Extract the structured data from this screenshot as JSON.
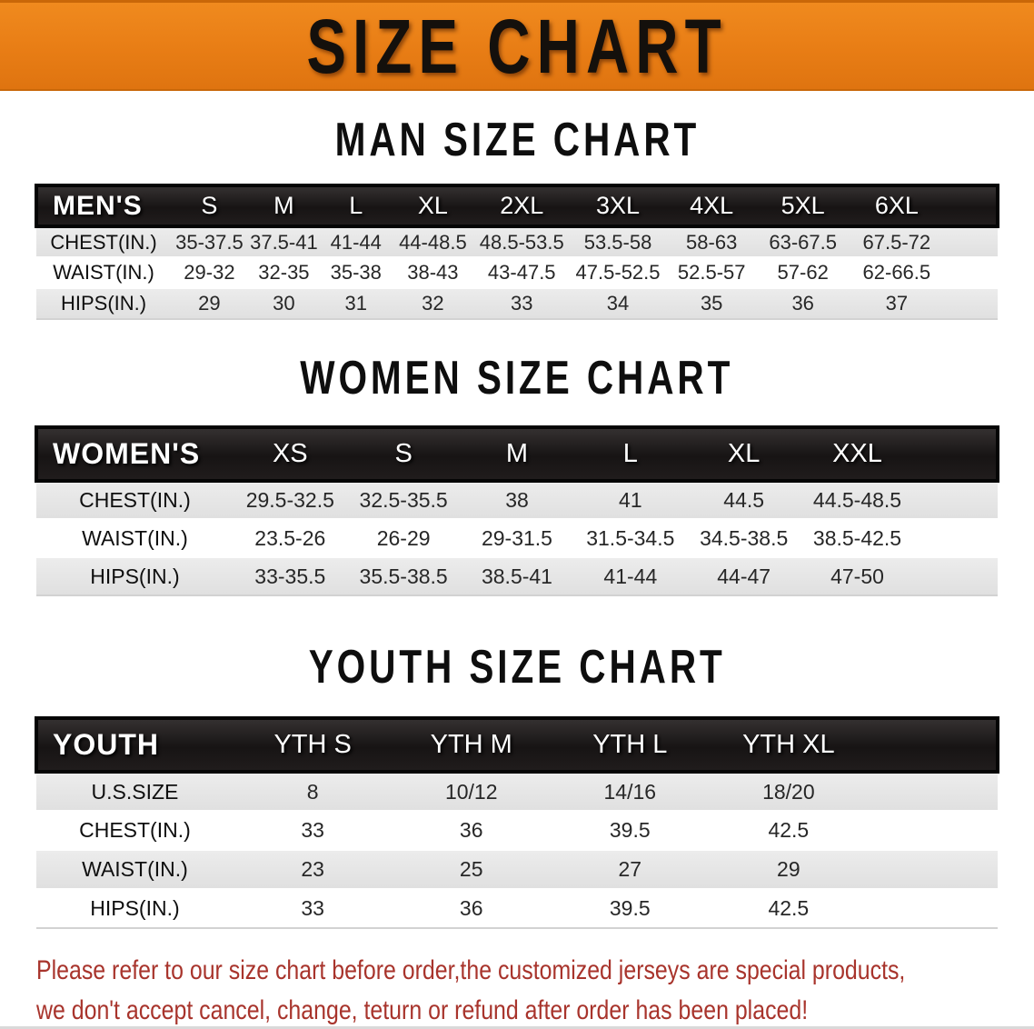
{
  "banner": {
    "title": "SIZE CHART"
  },
  "tables": [
    {
      "id": "men",
      "title": "MAN SIZE CHART",
      "header": [
        "MEN'S",
        "S",
        "M",
        "L",
        "XL",
        "2XL",
        "3XL",
        "4XL",
        "5XL",
        "6XL"
      ],
      "rows": [
        {
          "label": "CHEST(IN.)",
          "values": [
            "35-37.5",
            "37.5-41",
            "41-44",
            "44-48.5",
            "48.5-53.5",
            "53.5-58",
            "58-63",
            "63-67.5",
            "67.5-72"
          ]
        },
        {
          "label": "WAIST(IN.)",
          "values": [
            "29-32",
            "32-35",
            "35-38",
            "38-43",
            "43-47.5",
            "47.5-52.5",
            "52.5-57",
            "57-62",
            "62-66.5"
          ]
        },
        {
          "label": "HIPS(IN.)",
          "values": [
            "29",
            "30",
            "31",
            "32",
            "33",
            "34",
            "35",
            "36",
            "37"
          ]
        }
      ]
    },
    {
      "id": "women",
      "title": "WOMEN SIZE CHART",
      "header": [
        "WOMEN'S",
        "XS",
        "S",
        "M",
        "L",
        "XL",
        "XXL"
      ],
      "rows": [
        {
          "label": "CHEST(IN.)",
          "values": [
            "29.5-32.5",
            "32.5-35.5",
            "38",
            "41",
            "44.5",
            "44.5-48.5"
          ]
        },
        {
          "label": "WAIST(IN.)",
          "values": [
            "23.5-26",
            "26-29",
            "29-31.5",
            "31.5-34.5",
            "34.5-38.5",
            "38.5-42.5"
          ]
        },
        {
          "label": "HIPS(IN.)",
          "values": [
            "33-35.5",
            "35.5-38.5",
            "38.5-41",
            "41-44",
            "44-47",
            "47-50"
          ]
        }
      ]
    },
    {
      "id": "youth",
      "title": "YOUTH SIZE CHART",
      "header": [
        "YOUTH",
        "YTH S",
        "YTH M",
        "YTH L",
        "YTH XL"
      ],
      "rows": [
        {
          "label": "U.S.SIZE",
          "values": [
            "8",
            "10/12",
            "14/16",
            "18/20"
          ]
        },
        {
          "label": "CHEST(IN.)",
          "values": [
            "33",
            "36",
            "39.5",
            "42.5"
          ]
        },
        {
          "label": "WAIST(IN.)",
          "values": [
            "23",
            "25",
            "27",
            "29"
          ]
        },
        {
          "label": "HIPS(IN.)",
          "values": [
            "33",
            "36",
            "39.5",
            "42.5"
          ]
        }
      ]
    }
  ],
  "disclaimer": {
    "lines": [
      "Please refer to our size chart before order,the customized jerseys are special products,",
      "we don't accept cancel, change, teturn or refund after order has been placed!"
    ]
  },
  "colors": {
    "banner_orange": "#e87d15",
    "table_header_black": "#171414",
    "row_stripe_gray": "#e3e3e3",
    "disclaimer_red": "#a8342c"
  }
}
